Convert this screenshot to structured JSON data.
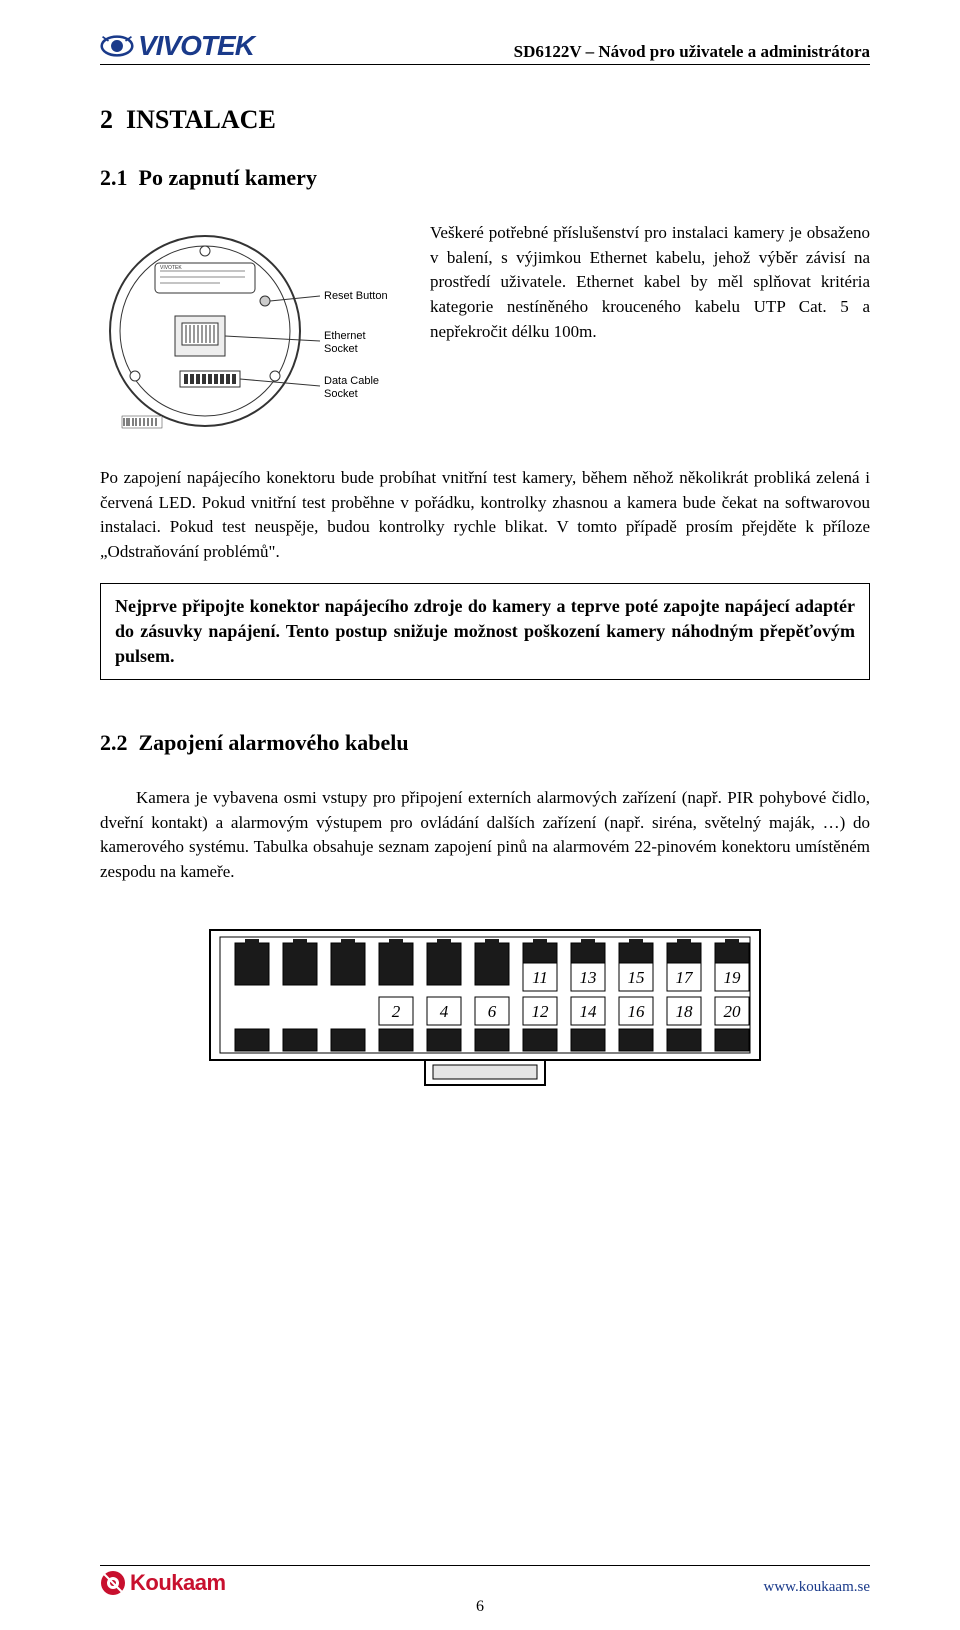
{
  "header": {
    "logo_text": "VIVOTEK",
    "subtitle": "SD6122V – Návod pro uživatele a administrátora"
  },
  "section": {
    "number": "2",
    "title": "INSTALACE"
  },
  "sub1": {
    "number": "2.1",
    "title": "Po zapnutí kamery",
    "para_intro": "Veškeré potřebné příslušenství pro instalaci kamery je obsaženo v balení, s výjimkou Ethernet kabelu, jehož výběr závisí na prostředí uživatele. Ethernet kabel by měl splňovat kritéria kategorie nestíněného krouceného kabelu UTP Cat. 5 a nepřekročit délku 100m.",
    "para_body_a": "Po zapojení napájecího konektoru bude probíhat vnitřní test kamery, během něhož několikrát probliká zelená i červená LED. Pokud vnitřní test proběhne v pořádku, kontrolky zhasnou a kamera bude čekat na softwarovou instalaci. Pokud test neuspěje, budou kontrolky rychle blikat. V tomto případě prosím přejděte k příloze „Odstraňování problémů\".",
    "callout": "Nejprve připojte konektor napájecího zdroje do kamery a teprve poté zapojte napájecí adaptér do zásuvky napájení. Tento postup snižuje možnost poškození kamery náhodným přepěťovým pulsem."
  },
  "sub2": {
    "number": "2.2",
    "title": "Zapojení alarmového kabelu",
    "para": "Kamera je vybavena osmi vstupy pro připojení externích alarmových zařízení (např. PIR pohybové čidlo, dveřní kontakt) a alarmovým výstupem pro ovládání dalších zařízení (např. siréna, světelný maják, …) do kamerového systému. Tabulka obsahuje seznam zapojení pinů na alarmovém 22-pinovém konektoru umístěném zespodu na kameře."
  },
  "diagram": {
    "labels": {
      "reset": "Reset Button",
      "ethernet": "Ethernet Socket",
      "data": "Data Cable Socket"
    },
    "colors": {
      "stroke": "#333333",
      "fill_light": "#ffffff",
      "fill_gray": "#cccccc"
    }
  },
  "connector": {
    "pins_top": [
      "11",
      "13",
      "15",
      "17",
      "19"
    ],
    "pins_bottom": [
      "2",
      "4",
      "6",
      "12",
      "14",
      "16",
      "18",
      "20"
    ],
    "colors": {
      "outline": "#000000",
      "jack_fill": "#1a1a1a",
      "body_fill": "#ffffff",
      "slot_fill": "#e5e5e5"
    }
  },
  "footer": {
    "brand": "Koukaam",
    "url": "www.koukaam.se",
    "page_number": "6"
  },
  "colors": {
    "brand_blue": "#1a3a8a",
    "brand_red": "#c8102e",
    "text": "#000000"
  }
}
